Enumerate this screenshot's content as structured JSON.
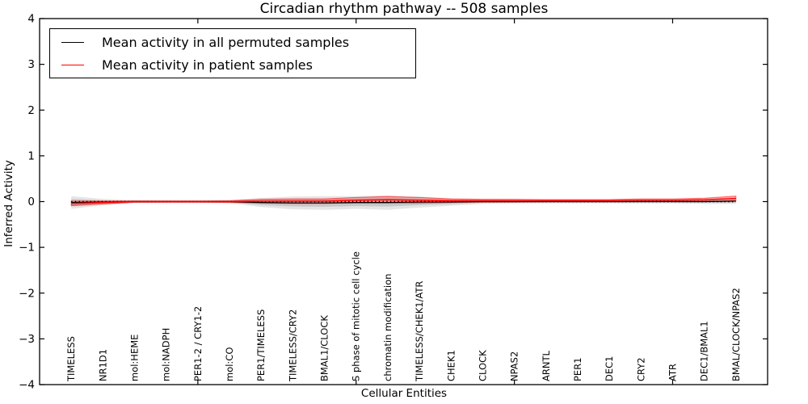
{
  "chart_data": {
    "type": "line",
    "title": "Circadian rhythm pathway -- 508 samples",
    "xlabel": "Cellular Entities",
    "ylabel": "Inferred Activity",
    "ylim": [
      -4,
      4
    ],
    "yticks": [
      -4,
      -3,
      -2,
      -1,
      0,
      1,
      2,
      3,
      4
    ],
    "xlim": [
      0,
      23
    ],
    "xticks": [
      5,
      10,
      15,
      20
    ],
    "grid": false,
    "legend_position": "upper left",
    "categories": [
      "TIMELESS",
      "NR1D1",
      "mol:HEME",
      "mol:NADPH",
      "PER1-2 / CRY1-2",
      "mol:CO",
      "PER1/TIMELESS",
      "TIMELESS/CRY2",
      "BMAL1/CLOCK",
      "S phase of mitotic cell cycle",
      "chromatin modification",
      "TIMELESS/CHEK1/ATR",
      "CHEK1",
      "CLOCK",
      "NPAS2",
      "ARNTL",
      "PER1",
      "DEC1",
      "CRY2",
      "ATR",
      "DEC1/BMAL1",
      "BMAL/CLOCK/NPAS2"
    ],
    "x": [
      1,
      2,
      3,
      4,
      5,
      6,
      7,
      8,
      9,
      10,
      11,
      12,
      13,
      14,
      15,
      16,
      17,
      18,
      19,
      20,
      21,
      22
    ],
    "series": [
      {
        "name": "Mean activity in all permuted samples",
        "color": "#000000",
        "band_color": "gray",
        "values": [
          -0.02,
          -0.01,
          0,
          0,
          0,
          0,
          -0.02,
          -0.03,
          -0.03,
          -0.02,
          -0.02,
          -0.01,
          -0.01,
          0,
          0,
          0,
          0,
          0,
          0,
          0,
          0,
          0.01
        ],
        "band_halfwidth": [
          0.14,
          0.07,
          0.03,
          0.02,
          0.02,
          0.03,
          0.1,
          0.14,
          0.15,
          0.14,
          0.16,
          0.12,
          0.08,
          0.05,
          0.04,
          0.04,
          0.04,
          0.04,
          0.04,
          0.04,
          0.05,
          0.06
        ]
      },
      {
        "name": "Mean activity in patient samples",
        "color": "#ff0000",
        "band_color": "red",
        "values": [
          -0.04,
          -0.02,
          0,
          0,
          0,
          0,
          0.01,
          0.01,
          0.01,
          0.03,
          0.04,
          0.03,
          0.02,
          0.02,
          0.02,
          0.02,
          0.02,
          0.02,
          0.03,
          0.03,
          0.04,
          0.07
        ],
        "band_halfwidth": [
          0.05,
          0.03,
          0.015,
          0.015,
          0.015,
          0.02,
          0.04,
          0.05,
          0.05,
          0.06,
          0.07,
          0.06,
          0.04,
          0.03,
          0.03,
          0.025,
          0.025,
          0.025,
          0.03,
          0.03,
          0.035,
          0.05
        ]
      }
    ],
    "zero_line": {
      "y": 0,
      "style": "dotted",
      "color": "#000000"
    }
  }
}
